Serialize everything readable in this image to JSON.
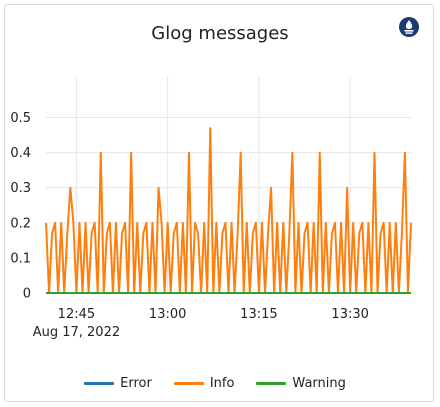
{
  "panel": {
    "title": "Glog messages",
    "logo_icon": "prometheus-icon",
    "logo_color": "#1f3b73"
  },
  "chart_data": {
    "type": "line",
    "title": "Glog messages",
    "xlabel": "",
    "ylabel": "",
    "ylim": [
      0,
      0.55
    ],
    "y_ticks": [
      "0",
      "0.1",
      "0.2",
      "0.3",
      "0.4",
      "0.5"
    ],
    "x_ticks": [
      "12:45",
      "13:00",
      "13:15",
      "13:30"
    ],
    "x_date_label": "Aug 17, 2022",
    "x_range": [
      "12:40",
      "13:40"
    ],
    "grid": true,
    "legend_position": "bottom",
    "series": [
      {
        "name": "Error",
        "color": "#1f77b4",
        "values": [
          0,
          0,
          0,
          0,
          0,
          0,
          0,
          0,
          0,
          0,
          0,
          0,
          0,
          0,
          0,
          0,
          0,
          0,
          0,
          0,
          0,
          0,
          0,
          0,
          0,
          0,
          0,
          0,
          0,
          0,
          0,
          0,
          0,
          0,
          0,
          0,
          0,
          0,
          0,
          0,
          0,
          0,
          0,
          0,
          0,
          0,
          0,
          0,
          0,
          0,
          0,
          0,
          0,
          0,
          0,
          0,
          0,
          0,
          0,
          0,
          0,
          0,
          0,
          0,
          0,
          0,
          0,
          0,
          0,
          0,
          0,
          0,
          0,
          0,
          0,
          0,
          0,
          0,
          0,
          0,
          0,
          0,
          0,
          0,
          0,
          0,
          0,
          0,
          0,
          0,
          0,
          0,
          0,
          0,
          0,
          0,
          0,
          0,
          0,
          0,
          0,
          0,
          0,
          0,
          0,
          0,
          0,
          0,
          0,
          0,
          0,
          0,
          0,
          0,
          0,
          0,
          0,
          0,
          0,
          0,
          0
        ]
      },
      {
        "name": "Info",
        "color": "#ff7f0e",
        "values": [
          0.2,
          0,
          0.17,
          0.2,
          0,
          0.2,
          0,
          0.17,
          0.3,
          0.2,
          0,
          0.2,
          0,
          0.2,
          0,
          0.17,
          0.2,
          0,
          0.4,
          0,
          0.17,
          0.2,
          0,
          0.2,
          0,
          0.17,
          0.2,
          0,
          0.4,
          0,
          0.2,
          0,
          0.17,
          0.2,
          0,
          0.2,
          0,
          0.3,
          0.2,
          0,
          0.2,
          0,
          0.17,
          0.2,
          0,
          0.2,
          0,
          0.4,
          0,
          0.2,
          0.17,
          0,
          0.2,
          0,
          0.47,
          0,
          0.2,
          0,
          0.17,
          0.2,
          0,
          0.2,
          0,
          0.17,
          0.4,
          0,
          0.2,
          0,
          0.17,
          0.2,
          0,
          0.2,
          0,
          0.17,
          0.3,
          0,
          0.2,
          0,
          0.2,
          0,
          0.17,
          0.4,
          0,
          0.2,
          0,
          0.17,
          0.2,
          0,
          0.2,
          0,
          0.4,
          0,
          0.2,
          0,
          0.17,
          0.2,
          0,
          0.2,
          0,
          0.3,
          0,
          0.2,
          0,
          0.17,
          0.2,
          0,
          0.2,
          0,
          0.4,
          0,
          0.17,
          0.2,
          0,
          0.2,
          0,
          0.2,
          0,
          0.17,
          0.4,
          0,
          0.2
        ]
      },
      {
        "name": "Warning",
        "color": "#2ca02c",
        "values": [
          0,
          0,
          0,
          0,
          0,
          0,
          0,
          0,
          0,
          0,
          0,
          0,
          0,
          0,
          0,
          0,
          0,
          0,
          0,
          0,
          0,
          0,
          0,
          0,
          0,
          0,
          0,
          0,
          0,
          0,
          0,
          0,
          0,
          0,
          0,
          0,
          0,
          0,
          0,
          0,
          0,
          0,
          0,
          0,
          0,
          0,
          0,
          0,
          0,
          0,
          0,
          0,
          0,
          0,
          0,
          0,
          0,
          0,
          0,
          0,
          0,
          0,
          0,
          0,
          0,
          0,
          0,
          0,
          0,
          0,
          0,
          0,
          0,
          0,
          0,
          0,
          0,
          0,
          0,
          0,
          0,
          0,
          0,
          0,
          0,
          0,
          0,
          0,
          0,
          0,
          0,
          0,
          0,
          0,
          0,
          0,
          0,
          0,
          0,
          0,
          0,
          0,
          0,
          0,
          0,
          0,
          0,
          0,
          0,
          0,
          0,
          0,
          0,
          0,
          0,
          0,
          0,
          0,
          0,
          0,
          0
        ]
      }
    ]
  }
}
